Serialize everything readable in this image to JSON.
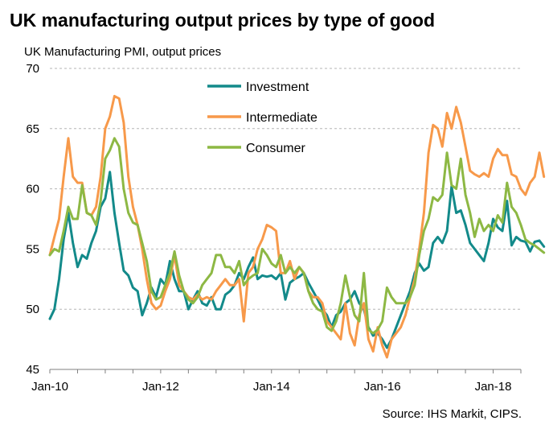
{
  "title": "UK manufacturing output prices by type of good",
  "subtitle": "UK Manufacturing PMI, output prices",
  "source": "Source: IHS Markit, CIPS.",
  "chart_data": {
    "type": "line",
    "ylim": [
      45,
      70
    ],
    "yticks": [
      45,
      50,
      55,
      60,
      65,
      70
    ],
    "xlim": [
      "2010-01",
      "2018-07"
    ],
    "xticks": [
      "Jan-10",
      "Jan-12",
      "Jan-14",
      "Jan-16",
      "Jan-18"
    ],
    "grid": "horizontal dashed",
    "legend_position": "top-left",
    "x_start": "2010-01",
    "x_step": "month",
    "series": [
      {
        "name": "Investment",
        "color": "#138A8A",
        "values": [
          49.2,
          50.0,
          52.5,
          55.8,
          58.0,
          55.5,
          53.5,
          54.5,
          54.2,
          55.5,
          56.5,
          58.5,
          59.2,
          61.4,
          58.0,
          55.5,
          53.2,
          52.8,
          51.8,
          51.5,
          49.5,
          50.5,
          51.8,
          51.0,
          52.5,
          52.0,
          54.0,
          52.5,
          51.5,
          51.5,
          50.0,
          50.8,
          51.5,
          50.5,
          50.3,
          51.0,
          50.0,
          50.0,
          51.2,
          51.5,
          52.0,
          53.0,
          52.5,
          53.5,
          54.3,
          52.5,
          52.8,
          52.7,
          52.8,
          52.5,
          53.0,
          50.8,
          52.2,
          52.5,
          52.7,
          53.0,
          52.2,
          51.5,
          50.8,
          50.0,
          49.5,
          48.5,
          49.5,
          49.8,
          50.5,
          50.8,
          51.5,
          50.5,
          50.0,
          48.5,
          47.8,
          48.0,
          47.5,
          46.8,
          47.5,
          48.5,
          49.5,
          50.5,
          51.5,
          53.0,
          53.8,
          53.2,
          53.5,
          55.5,
          56.0,
          55.5,
          56.5,
          60.2,
          58.0,
          58.2,
          57.0,
          55.5,
          55.0,
          54.5,
          54.0,
          55.5,
          57.5,
          56.8,
          56.5,
          59.0,
          55.3,
          56.0,
          55.7,
          55.6,
          54.8,
          55.6,
          55.7,
          55.2
        ]
      },
      {
        "name": "Intermediate",
        "color": "#F7994A",
        "values": [
          54.5,
          56.0,
          57.5,
          61.0,
          64.2,
          61.0,
          60.5,
          60.5,
          58.0,
          57.8,
          58.5,
          61.0,
          65.0,
          66.0,
          67.7,
          67.5,
          65.5,
          61.0,
          58.5,
          57.0,
          55.0,
          52.5,
          50.5,
          50.0,
          50.3,
          51.5,
          52.5,
          54.5,
          52.0,
          51.5,
          51.0,
          50.8,
          51.2,
          50.8,
          51.0,
          50.8,
          51.5,
          52.0,
          52.5,
          52.0,
          52.0,
          52.5,
          49.0,
          53.0,
          53.5,
          55.0,
          55.8,
          57.0,
          56.8,
          56.5,
          53.0,
          53.0,
          54.0,
          52.5,
          53.5,
          53.0,
          51.5,
          51.0,
          51.0,
          50.5,
          49.0,
          48.5,
          48.0,
          47.5,
          50.5,
          48.0,
          47.0,
          49.5,
          50.5,
          47.5,
          46.5,
          48.5,
          47.0,
          46.0,
          47.5,
          48.0,
          48.5,
          49.5,
          51.0,
          52.5,
          55.0,
          58.0,
          63.0,
          65.3,
          65.0,
          63.5,
          66.3,
          65.0,
          66.8,
          65.5,
          63.5,
          61.5,
          61.2,
          61.0,
          61.3,
          61.0,
          62.5,
          63.3,
          62.8,
          62.8,
          61.2,
          61.0,
          60.0,
          59.5,
          60.5,
          61.0,
          63.0,
          61.0
        ]
      },
      {
        "name": "Consumer",
        "color": "#8DB844",
        "values": [
          54.5,
          55.0,
          54.8,
          56.5,
          58.5,
          57.5,
          57.5,
          60.3,
          58.0,
          57.8,
          57.0,
          59.0,
          62.5,
          63.2,
          64.2,
          63.5,
          60.0,
          58.0,
          57.2,
          57.0,
          55.5,
          54.0,
          51.5,
          50.8,
          51.0,
          52.0,
          53.0,
          54.8,
          52.8,
          51.5,
          50.8,
          50.5,
          51.0,
          52.0,
          52.5,
          53.0,
          54.5,
          54.5,
          53.5,
          53.5,
          53.0,
          54.0,
          52.0,
          52.5,
          52.8,
          53.0,
          55.0,
          54.5,
          53.8,
          53.5,
          54.5,
          53.0,
          53.5,
          53.0,
          53.5,
          53.0,
          51.5,
          50.5,
          50.0,
          49.8,
          48.5,
          48.2,
          49.0,
          50.5,
          52.8,
          51.0,
          49.5,
          49.0,
          53.0,
          48.3,
          48.0,
          48.3,
          49.0,
          51.8,
          51.0,
          50.5,
          50.5,
          50.5,
          51.0,
          52.0,
          54.5,
          56.5,
          57.5,
          59.3,
          59.0,
          59.5,
          63.0,
          60.3,
          60.0,
          62.5,
          59.5,
          58.0,
          56.0,
          57.5,
          56.5,
          57.0,
          56.5,
          57.8,
          57.2,
          60.5,
          58.5,
          58.0,
          57.0,
          55.8,
          55.5,
          55.3,
          55.0,
          54.7
        ]
      }
    ]
  }
}
